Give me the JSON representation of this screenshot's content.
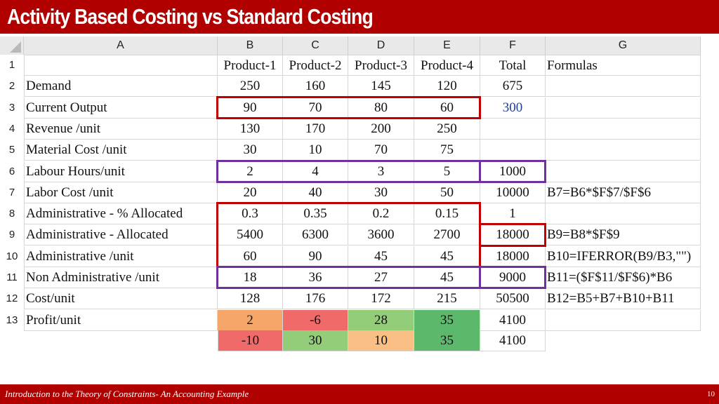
{
  "title": "Activity Based Costing vs Standard Costing",
  "footer": {
    "text": "Introduction to the Theory of Constraints- An Accounting Example",
    "page_number": "10"
  },
  "colors": {
    "brand_red": "#b00000",
    "box_red": "#c00000",
    "box_purple": "#7030a0",
    "blue_text": "#1f3f8f",
    "orange_fill": "#f7a66a",
    "red_fill": "#f06a6a",
    "green_light_fill": "#93cd7a",
    "green_dark_fill": "#5cb86a",
    "peach_fill": "#f9bf85"
  },
  "spreadsheet": {
    "column_headers": [
      "A",
      "B",
      "C",
      "D",
      "E",
      "F",
      "G"
    ],
    "rows": [
      {
        "num": "1",
        "cells": [
          "",
          "Product-1",
          "Product-2",
          "Product-3",
          "Product-4",
          "Total",
          "Formulas"
        ]
      },
      {
        "num": "2",
        "cells": [
          "Demand",
          "250",
          "160",
          "145",
          "120",
          "675",
          ""
        ]
      },
      {
        "num": "3",
        "cells": [
          "Current Output",
          "90",
          "70",
          "80",
          "60",
          "300",
          ""
        ]
      },
      {
        "num": "4",
        "cells": [
          "Revenue /unit",
          "130",
          "170",
          "200",
          "250",
          "",
          ""
        ]
      },
      {
        "num": "5",
        "cells": [
          "Material Cost /unit",
          "30",
          "10",
          "70",
          "75",
          "",
          ""
        ]
      },
      {
        "num": "6",
        "cells": [
          "Labour Hours/unit",
          "2",
          "4",
          "3",
          "5",
          "1000",
          ""
        ]
      },
      {
        "num": "7",
        "cells": [
          "Labor Cost /unit",
          "20",
          "40",
          "30",
          "50",
          "10000",
          "B7=B6*$F$7/$F$6"
        ]
      },
      {
        "num": "8",
        "cells": [
          "Administrative - % Allocated",
          "0.3",
          "0.35",
          "0.2",
          "0.15",
          "1",
          ""
        ]
      },
      {
        "num": "9",
        "cells": [
          "Administrative - Allocated",
          "5400",
          "6300",
          "3600",
          "2700",
          "18000",
          "B9=B8*$F$9"
        ]
      },
      {
        "num": "10",
        "cells": [
          "Administrative /unit",
          "60",
          "90",
          "45",
          "45",
          "18000",
          "B10=IFERROR(B9/B3,\"\")"
        ]
      },
      {
        "num": "11",
        "cells": [
          "Non Administrative /unit",
          "18",
          "36",
          "27",
          "45",
          "9000",
          "B11=($F$11/$F$6)*B6"
        ]
      },
      {
        "num": "12",
        "cells": [
          "Cost/unit",
          "128",
          "176",
          "172",
          "215",
          "50500",
          "B12=B5+B7+B10+B11"
        ]
      },
      {
        "num": "13",
        "cells": [
          "Profit/unit",
          "2",
          "-6",
          "28",
          "35",
          "4100",
          ""
        ]
      }
    ],
    "extra_row": [
      "-10",
      "30",
      "10",
      "35",
      "4100"
    ]
  }
}
